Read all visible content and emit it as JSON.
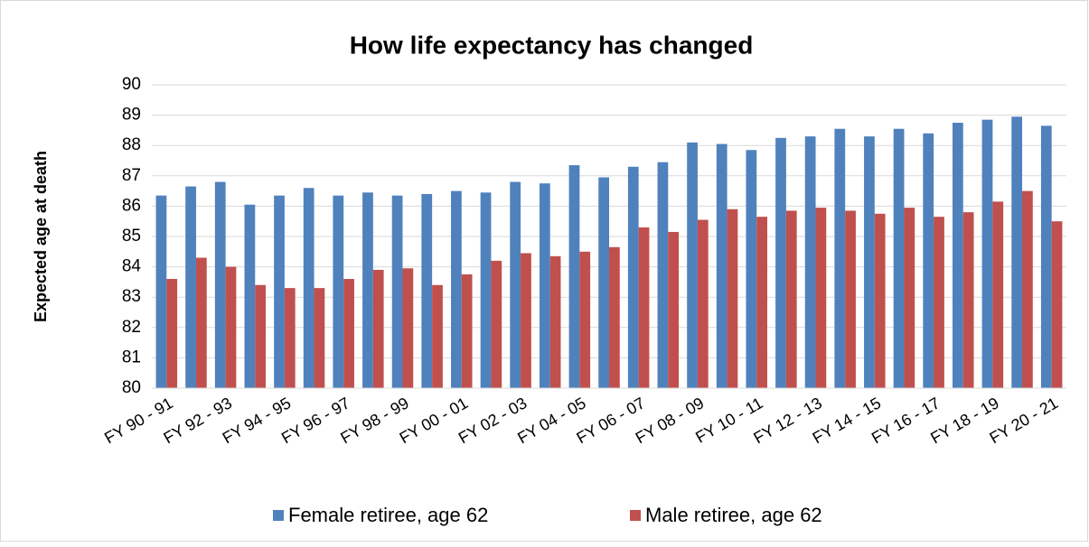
{
  "chart_data": {
    "type": "bar",
    "title": "How life expectancy has changed",
    "y_label": "Expected age at death",
    "categories": [
      "FY 90 - 91",
      null,
      "FY 92 - 93",
      null,
      "FY 94 - 95",
      null,
      "FY 96 - 97",
      null,
      "FY 98 - 99",
      null,
      "FY 00 - 01",
      null,
      "FY 02 - 03",
      null,
      "FY 04 - 05",
      null,
      "FY 06 - 07",
      null,
      "FY 08 - 09",
      null,
      "FY 10 - 11",
      null,
      "FY 12 - 13",
      null,
      "FY 14 - 15",
      null,
      "FY 16 - 17",
      null,
      "FY 18 - 19",
      null,
      "FY 20 - 21"
    ],
    "series": [
      {
        "name": "Female retiree, age 62",
        "color": "#4f81bd",
        "values": [
          86.35,
          86.65,
          86.8,
          86.05,
          86.35,
          86.6,
          86.35,
          86.45,
          86.35,
          86.4,
          86.5,
          86.45,
          86.8,
          86.75,
          87.35,
          86.95,
          87.3,
          87.45,
          88.1,
          88.05,
          87.85,
          88.25,
          88.3,
          88.55,
          88.3,
          88.55,
          88.4,
          88.75,
          88.85,
          88.95,
          88.65
        ]
      },
      {
        "name": "Male retiree, age 62",
        "color": "#c0504d",
        "values": [
          83.6,
          84.3,
          84.0,
          83.4,
          83.3,
          83.3,
          83.6,
          83.9,
          83.95,
          83.4,
          83.75,
          84.2,
          84.45,
          84.35,
          84.5,
          84.65,
          85.3,
          85.15,
          85.55,
          85.9,
          85.65,
          85.85,
          85.95,
          85.85,
          85.75,
          85.95,
          85.65,
          85.8,
          86.15,
          86.5,
          85.5
        ]
      }
    ],
    "ylim": [
      80,
      90
    ],
    "yticks": [
      80,
      81,
      82,
      83,
      84,
      85,
      86,
      87,
      88,
      89,
      90
    ],
    "grid": true,
    "legend": "bottom"
  }
}
